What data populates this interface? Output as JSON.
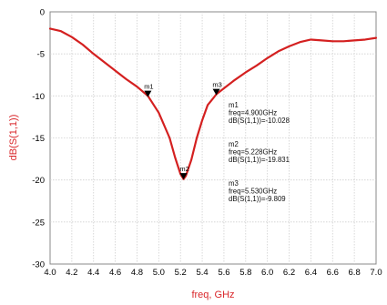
{
  "chart_data": {
    "type": "line",
    "title": "",
    "xlabel": "freq, GHz",
    "ylabel": "dB(S(1,1))",
    "xlim": [
      4.0,
      7.0
    ],
    "ylim": [
      -30,
      0
    ],
    "x_ticks": [
      "4.0",
      "4.2",
      "4.4",
      "4.6",
      "4.8",
      "5.0",
      "5.2",
      "5.4",
      "5.6",
      "5.8",
      "6.0",
      "6.2",
      "6.4",
      "6.6",
      "6.8",
      "7.0"
    ],
    "y_ticks": [
      "0",
      "-5",
      "-10",
      "-15",
      "-20",
      "-25",
      "-30"
    ],
    "grid": true,
    "line_color": "#d42020",
    "series": [
      {
        "x": [
          4.0,
          4.1,
          4.2,
          4.3,
          4.4,
          4.5,
          4.6,
          4.7,
          4.8,
          4.9,
          5.0,
          5.1,
          5.15,
          5.2,
          5.228,
          5.25,
          5.3,
          5.35,
          5.4,
          5.45,
          5.5,
          5.53,
          5.6,
          5.7,
          5.8,
          5.9,
          6.0,
          6.1,
          6.2,
          6.3,
          6.4,
          6.5,
          6.6,
          6.7,
          6.8,
          6.9,
          7.0
        ],
        "y": [
          -2.0,
          -2.3,
          -3.0,
          -3.9,
          -5.0,
          -6.0,
          -7.0,
          -8.0,
          -8.9,
          -10.0,
          -12.0,
          -15.0,
          -17.3,
          -19.3,
          -19.9,
          -19.5,
          -17.6,
          -15.0,
          -12.9,
          -11.1,
          -10.3,
          -9.8,
          -9.1,
          -8.1,
          -7.2,
          -6.4,
          -5.5,
          -4.7,
          -4.1,
          -3.6,
          -3.3,
          -3.4,
          -3.5,
          -3.5,
          -3.4,
          -3.3,
          -3.1
        ]
      }
    ],
    "markers": [
      {
        "id": "m1",
        "x": 4.9,
        "y": -10.028,
        "lines": [
          "m1",
          "freq=4.900GHz",
          "dB(S(1,1))=-10.028"
        ]
      },
      {
        "id": "m2",
        "x": 5.228,
        "y": -19.831,
        "lines": [
          "m2",
          "freq=5.228GHz",
          "dB(S(1,1))=-19.831"
        ]
      },
      {
        "id": "m3",
        "x": 5.53,
        "y": -9.809,
        "lines": [
          "m3",
          "freq=5.530GHz",
          "dB(S(1,1))=-9.809"
        ]
      }
    ]
  }
}
